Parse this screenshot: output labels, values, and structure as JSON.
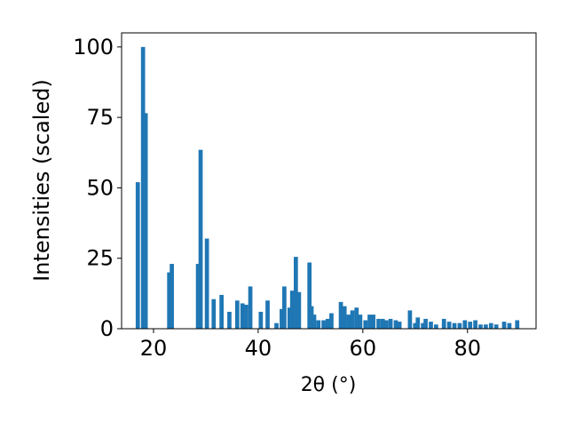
{
  "chart_data": {
    "type": "bar",
    "x_label": "2θ (°)",
    "y_label": "Intensities (scaled)",
    "x": [
      17.0,
      18.0,
      18.5,
      23.0,
      23.5,
      28.5,
      29.0,
      30.2,
      31.5,
      33.0,
      34.5,
      36.0,
      37.0,
      37.7,
      38.5,
      40.5,
      41.8,
      43.5,
      44.5,
      45.0,
      46.0,
      46.5,
      47.2,
      47.8,
      49.8,
      50.2,
      50.7,
      51.5,
      52.5,
      53.3,
      54.0,
      55.8,
      56.5,
      57.3,
      58.0,
      58.8,
      59.5,
      60.5,
      61.3,
      62.0,
      63.0,
      63.8,
      64.5,
      65.3,
      66.3,
      67.0,
      69.0,
      70.0,
      70.5,
      71.5,
      72.0,
      73.0,
      74.0,
      75.5,
      76.5,
      77.5,
      78.5,
      79.5,
      80.5,
      81.5,
      82.5,
      83.5,
      84.5,
      85.5,
      87.0,
      88.0,
      89.5
    ],
    "values": [
      52,
      100,
      76.5,
      20,
      23,
      23,
      63.5,
      32,
      10.5,
      12,
      6,
      10,
      9,
      8.5,
      15,
      6,
      10,
      2,
      7,
      15,
      7.5,
      13.5,
      25.5,
      13,
      23.5,
      8,
      5,
      3,
      3,
      3.5,
      5.5,
      9.5,
      8,
      5,
      6.5,
      7.5,
      5,
      3,
      5,
      5,
      3.5,
      3.5,
      3,
      3.5,
      3,
      2.5,
      6.5,
      2,
      4,
      2,
      3.5,
      2.5,
      1.5,
      3.5,
      2.5,
      2,
      2,
      3,
      2.5,
      3,
      1.5,
      1.5,
      2,
      1.5,
      2.5,
      2,
      3
    ],
    "color": "#1f77b4",
    "xlim": [
      13.9,
      93.1
    ],
    "ylim": [
      0,
      105
    ],
    "xticks": [
      20,
      40,
      60,
      80
    ],
    "yticks": [
      0,
      25,
      50,
      75,
      100
    ]
  }
}
